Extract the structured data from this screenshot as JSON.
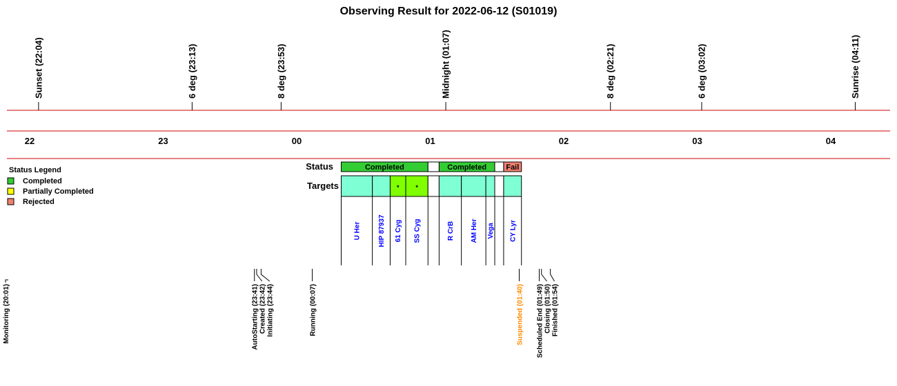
{
  "chart_data": {
    "type": "timeline",
    "title": "Observing Result for 2022-06-12 (S01019)",
    "time_axis": {
      "start": "21:45",
      "end": "04:25",
      "hour_labels": [
        {
          "t": "22:00",
          "label": "22"
        },
        {
          "t": "23:00",
          "label": "23"
        },
        {
          "t": "24:00",
          "label": "00"
        },
        {
          "t": "25:00",
          "label": "01"
        },
        {
          "t": "26:00",
          "label": "02"
        },
        {
          "t": "27:00",
          "label": "03"
        },
        {
          "t": "28:00",
          "label": "04"
        }
      ]
    },
    "twilight_markers": [
      {
        "t": "22:04",
        "label": "Sunset (22:04)"
      },
      {
        "t": "23:13",
        "label": "6 deg (23:13)"
      },
      {
        "t": "23:53",
        "label": "8 deg (23:53)"
      },
      {
        "t": "25:07",
        "label": "Midnight (01:07)"
      },
      {
        "t": "26:21",
        "label": "8 deg (02:21)"
      },
      {
        "t": "27:02",
        "label": "6 deg (03:02)"
      },
      {
        "t": "28:11",
        "label": "Sunrise (04:11)"
      }
    ],
    "status_label": "Status",
    "targets_label": "Targets",
    "status_segments": [
      {
        "start": "24:20",
        "end": "24:59",
        "label": "Completed",
        "status": "completed"
      },
      {
        "start": "24:59",
        "end": "25:04",
        "label": "",
        "status": "none"
      },
      {
        "start": "25:04",
        "end": "25:29",
        "label": "Completed",
        "status": "completed"
      },
      {
        "start": "25:29",
        "end": "25:33",
        "label": "",
        "status": "none"
      },
      {
        "start": "25:33",
        "end": "25:41",
        "label": "Fail",
        "status": "rejected"
      }
    ],
    "target_blocks": [
      {
        "start": "24:20",
        "end": "24:34",
        "name": "U Her",
        "color": "#7fffd4",
        "mark": ""
      },
      {
        "start": "24:34",
        "end": "24:42",
        "name": "HIP 87937",
        "color": "#7fffd4",
        "mark": ""
      },
      {
        "start": "24:42",
        "end": "24:49",
        "name": "61 Cyg",
        "color": "#7fff00",
        "mark": "*"
      },
      {
        "start": "24:49",
        "end": "24:59",
        "name": "SS Cyg",
        "color": "#7fff00",
        "mark": "*"
      },
      {
        "start": "24:59",
        "end": "25:04",
        "name": "",
        "color": "#ffffff",
        "mark": ""
      },
      {
        "start": "25:04",
        "end": "25:14",
        "name": "R CrB",
        "color": "#7fffd4",
        "mark": ""
      },
      {
        "start": "25:14",
        "end": "25:25",
        "name": "AM Her",
        "color": "#7fffd4",
        "mark": ""
      },
      {
        "start": "25:25",
        "end": "25:29",
        "name": "Vega",
        "color": "#7fffd4",
        "mark": ""
      },
      {
        "start": "25:29",
        "end": "25:33",
        "name": "",
        "color": "#ffffff",
        "mark": ""
      },
      {
        "start": "25:33",
        "end": "25:41",
        "name": "CY Lyr",
        "color": "#7fffd4",
        "mark": ""
      }
    ],
    "legend": {
      "title": "Status Legend",
      "placement": "left",
      "items": [
        {
          "label": "Completed",
          "color": "#33cc33"
        },
        {
          "label": "Partially Completed",
          "color": "#ffff00"
        },
        {
          "label": "Rejected",
          "color": "#f08070"
        }
      ]
    },
    "events": [
      {
        "t": "20:01",
        "label": "Monitoring (20:01)",
        "color": "#000000"
      },
      {
        "t": "23:41",
        "label": "AutoStarting (23:41)",
        "color": "#000000"
      },
      {
        "t": "23:42",
        "label": "Created (23:42)",
        "color": "#000000"
      },
      {
        "t": "23:44",
        "label": "Initiating (23:44)",
        "color": "#000000"
      },
      {
        "t": "24:07",
        "label": "Running (00:07)",
        "color": "#000000"
      },
      {
        "t": "25:40",
        "label": "Suspended (01:40)",
        "color": "#ff8c00"
      },
      {
        "t": "25:49",
        "label": "Scheduled End (01:49)",
        "color": "#000000"
      },
      {
        "t": "25:50",
        "label": "Closing (01:50)",
        "color": "#000000"
      },
      {
        "t": "25:54",
        "label": "Finished (01:54)",
        "color": "#000000"
      }
    ],
    "colors": {
      "axis_line": "#cc0000",
      "completed": "#33cc33",
      "rejected": "#f08070",
      "target_text": "#0000ff",
      "suspended_text": "#ff8c00"
    }
  }
}
